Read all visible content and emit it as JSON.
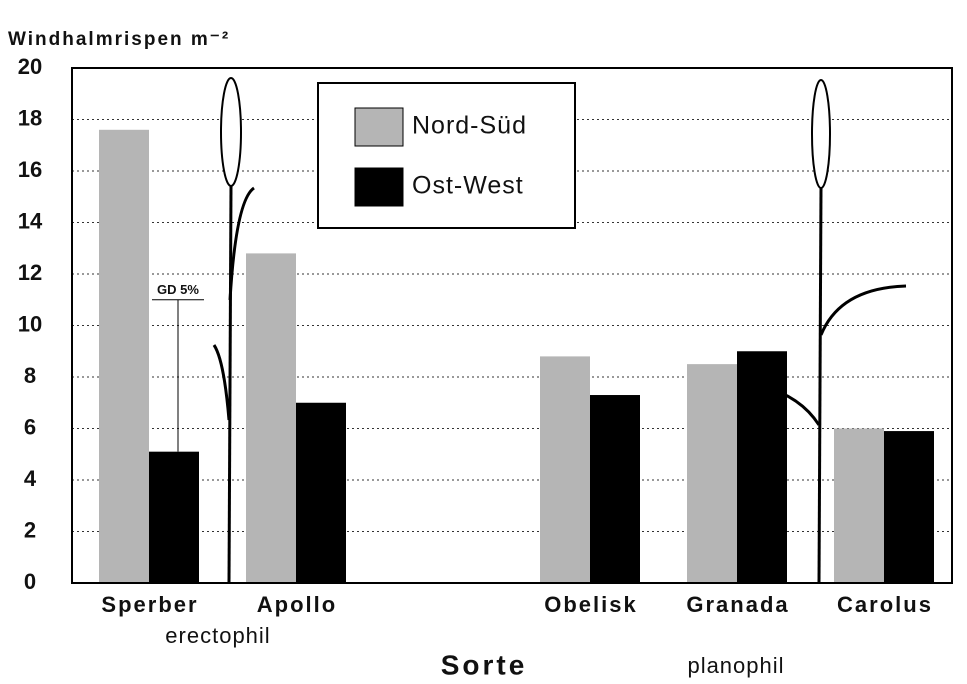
{
  "chart_data": {
    "type": "bar",
    "y_label": "Windhalmrispen m⁻²",
    "x_label": "Sorte",
    "categories": [
      "Sperber",
      "Apollo",
      null,
      "Obelisk",
      "Granada",
      "Carolus"
    ],
    "series": [
      {
        "name": "Nord-Süd",
        "color": "#b5b5b5",
        "values": [
          17.6,
          12.8,
          null,
          8.8,
          8.5,
          6.0
        ]
      },
      {
        "name": "Ost-West",
        "color": "#000000",
        "values": [
          5.1,
          7.0,
          null,
          7.3,
          9.0,
          5.9
        ]
      }
    ],
    "groups": [
      {
        "label": "erectophil"
      },
      {
        "label": "planophil"
      }
    ],
    "annotation": {
      "text": "GD 5%",
      "value": 5.9
    },
    "ylim": [
      0,
      20
    ],
    "yticks": [
      0,
      2,
      4,
      6,
      8,
      10,
      12,
      14,
      16,
      18,
      20
    ],
    "grid": true
  }
}
